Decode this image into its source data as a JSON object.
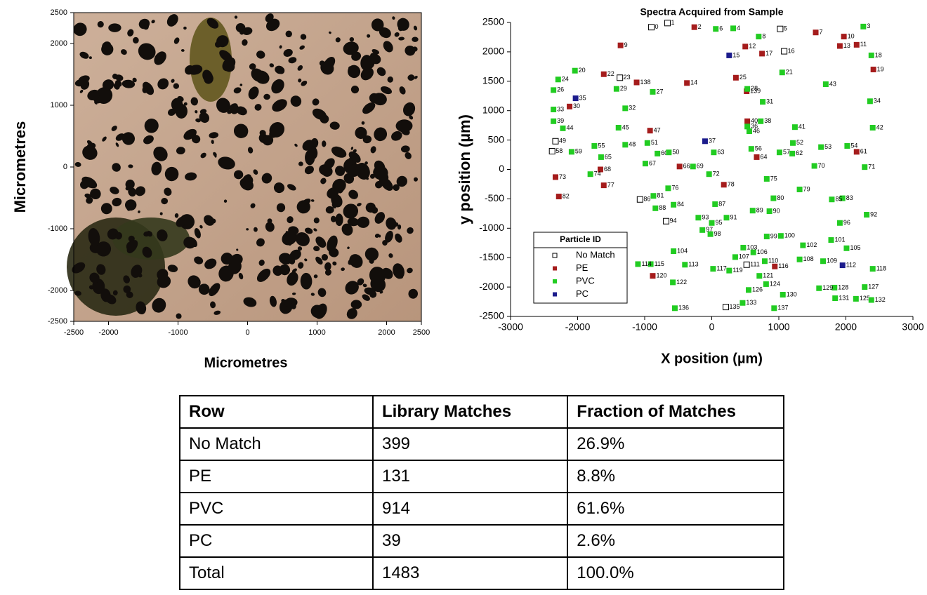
{
  "chart_data": [
    {
      "type": "image",
      "xlabel": "Micrometres",
      "ylabel": "Micrometres",
      "xlim": [
        -2500,
        2500
      ],
      "xticks": [
        -2500,
        -2000,
        -1000,
        0,
        1000,
        2000,
        2500
      ],
      "ylim": [
        -2500,
        2500
      ],
      "yticks": [
        -2500,
        -2000,
        -1000,
        0,
        1000,
        2000,
        2500
      ]
    },
    {
      "type": "scatter",
      "title": "Spectra Acquired from Sample",
      "xlabel": "X position (µm)",
      "ylabel": "y position (µm)",
      "xlim": [
        -3000,
        3000
      ],
      "xticks": [
        -3000,
        -2000,
        -1000,
        0,
        1000,
        2000,
        3000
      ],
      "ylim": [
        -2500,
        2500
      ],
      "yticks": [
        -2500,
        -2000,
        -1500,
        -1000,
        -500,
        0,
        500,
        1000,
        1500,
        2000,
        2500
      ],
      "legend": "lower left",
      "legend_title": "Particle ID",
      "series": [
        {
          "name": "No Match",
          "color": "#000000",
          "marker": "hollow-square",
          "point_labels": [
            "0",
            "1",
            "5",
            "16",
            "23",
            "49",
            "58",
            "86",
            "94",
            "111",
            "135"
          ],
          "x": [
            -900,
            -660,
            1020,
            1080,
            -1370,
            -2330,
            -2380,
            -1070,
            -680,
            520,
            210
          ],
          "values": [
            2420,
            2490,
            2390,
            2010,
            1560,
            480,
            310,
            -510,
            -880,
            -1620,
            -2340
          ]
        },
        {
          "name": "PE",
          "color": "#a51c1c",
          "marker": "square",
          "point_labels": [
            "2",
            "7",
            "10",
            "13",
            "11",
            "19",
            "9",
            "12",
            "17",
            "22",
            "138",
            "14",
            "25",
            "139",
            "30",
            "40",
            "47",
            "61",
            "64",
            "66",
            "68",
            "73",
            "77",
            "78",
            "82",
            "116",
            "120"
          ],
          "x": [
            -260,
            1550,
            1970,
            1910,
            2160,
            2410,
            -1360,
            500,
            750,
            -1610,
            -1120,
            -370,
            360,
            520,
            -2120,
            530,
            -920,
            2160,
            670,
            -480,
            -1660,
            -2330,
            -1610,
            180,
            -2280,
            940,
            -880
          ],
          "values": [
            2420,
            2330,
            2260,
            2100,
            2120,
            1700,
            2110,
            2090,
            1970,
            1620,
            1480,
            1470,
            1560,
            1330,
            1070,
            820,
            660,
            300,
            210,
            50,
            0,
            -130,
            -270,
            -260,
            -460,
            -1650,
            -1810
          ]
        },
        {
          "name": "PVC",
          "color": "#22cc22",
          "marker": "square",
          "point_labels": [
            "6",
            "4",
            "3",
            "18",
            "8",
            "20",
            "24",
            "21",
            "43",
            "26",
            "29",
            "27",
            "28",
            "31",
            "34",
            "33",
            "32",
            "39",
            "44",
            "38",
            "36",
            "46",
            "41",
            "42",
            "45",
            "51",
            "48",
            "55",
            "52",
            "53",
            "54",
            "59",
            "56",
            "60",
            "50",
            "63",
            "57",
            "62",
            "65",
            "67",
            "69",
            "70",
            "71",
            "74",
            "72",
            "75",
            "76",
            "79",
            "81",
            "80",
            "83",
            "85",
            "87",
            "84",
            "88",
            "89",
            "90",
            "92",
            "91",
            "93",
            "95",
            "96",
            "97",
            "98",
            "99",
            "100",
            "101",
            "102",
            "103",
            "105",
            "104",
            "106",
            "107",
            "108",
            "109",
            "110",
            "113",
            "115",
            "114",
            "117",
            "119",
            "118",
            "121",
            "122",
            "124",
            "127",
            "128",
            "129",
            "126",
            "130",
            "131",
            "125",
            "132",
            "133",
            "136",
            "137"
          ],
          "x": [
            60,
            320,
            2260,
            2380,
            700,
            -2040,
            -2290,
            1050,
            1700,
            -2360,
            -1420,
            -880,
            530,
            760,
            2360,
            -2360,
            -1290,
            -2360,
            -2220,
            730,
            530,
            560,
            1240,
            2400,
            -1390,
            -960,
            -1290,
            -1750,
            1210,
            1630,
            2020,
            -2090,
            590,
            -810,
            -640,
            30,
            1010,
            1200,
            -1650,
            -990,
            -280,
            1530,
            2280,
            -1810,
            -40,
            820,
            -650,
            1310,
            -870,
            920,
            1950,
            1790,
            50,
            -570,
            -840,
            610,
            860,
            2310,
            220,
            -200,
            0,
            1910,
            -140,
            -20,
            820,
            1030,
            1780,
            1360,
            470,
            2010,
            -570,
            620,
            350,
            1310,
            1660,
            790,
            -400,
            -910,
            -1100,
            20,
            260,
            2400,
            710,
            -580,
            810,
            2280,
            1830,
            1600,
            550,
            1060,
            1840,
            2150,
            2380,
            460,
            -550,
            930
          ],
          "values": [
            2390,
            2400,
            2430,
            1940,
            2260,
            1680,
            1530,
            1650,
            1450,
            1350,
            1370,
            1320,
            1370,
            1150,
            1160,
            1020,
            1040,
            820,
            700,
            820,
            730,
            650,
            720,
            710,
            710,
            450,
            420,
            400,
            450,
            380,
            400,
            300,
            350,
            270,
            290,
            290,
            290,
            270,
            210,
            100,
            50,
            60,
            40,
            -80,
            -80,
            -160,
            -320,
            -340,
            -450,
            -490,
            -490,
            -510,
            -590,
            -600,
            -660,
            -700,
            -710,
            -770,
            -820,
            -820,
            -910,
            -910,
            -1030,
            -1100,
            -1140,
            -1130,
            -1200,
            -1290,
            -1330,
            -1340,
            -1390,
            -1410,
            -1490,
            -1530,
            -1560,
            -1560,
            -1620,
            -1610,
            -1610,
            -1690,
            -1720,
            -1690,
            -1810,
            -1920,
            -1950,
            -2000,
            -2010,
            -2020,
            -2050,
            -2130,
            -2190,
            -2200,
            -2220,
            -2270,
            -2360,
            -2360
          ]
        },
        {
          "name": "PC",
          "color": "#1c1c8c",
          "marker": "square",
          "point_labels": [
            "15",
            "35",
            "37",
            "112"
          ],
          "x": [
            260,
            -2030,
            -100,
            1950
          ],
          "values": [
            1940,
            1210,
            480,
            -1630
          ]
        }
      ]
    }
  ],
  "table": {
    "header": [
      "Row",
      "Library Matches",
      "Fraction of Matches"
    ],
    "rows": [
      [
        "No Match",
        399,
        "26.9%"
      ],
      [
        "PE",
        131,
        "8.8%"
      ],
      [
        "PVC",
        914,
        "61.6%"
      ],
      [
        "PC",
        39,
        "2.6%"
      ],
      [
        "Total",
        1483,
        "100.0%"
      ]
    ]
  }
}
